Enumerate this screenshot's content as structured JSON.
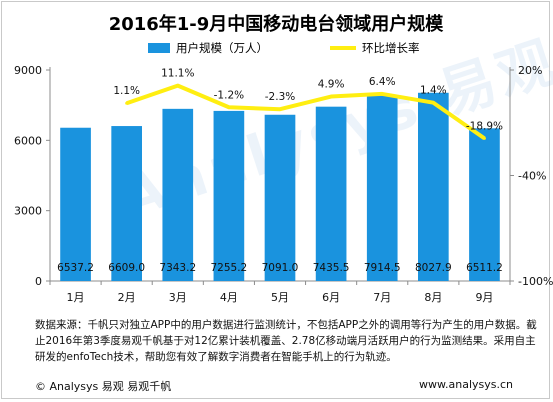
{
  "colors": {
    "bar": "#1a93de",
    "line": "#ffee11",
    "axis": "#8c8c8c",
    "grid": "#e0e0e0",
    "watermark": "#9fc6e8"
  },
  "watermark_text": "Analysys 易观",
  "note": "数据来源：千帆只对独立APP中的用户数据进行监测统计，不包括APP之外的调用等行为产生的用户数据。截止2016年第3季度易观千帆基于对12亿累计装机覆盖、2.78亿移动端月活跃用户的行为监测结果。采用自主研发的enfoTech技术，帮助您有效了解数字消费者在智能手机上的行为轨迹。",
  "footer": {
    "left": "© Analysys 易观   易观千帆",
    "right": "www.analysys.cn"
  },
  "chart_data": {
    "type": "bar",
    "title": "2016年1-9月中国移动电台领域用户规模",
    "categories": [
      "1月",
      "2月",
      "3月",
      "4月",
      "5月",
      "6月",
      "7月",
      "8月",
      "9月"
    ],
    "series": [
      {
        "name": "用户规模（万人）",
        "type": "bar",
        "axis": "left",
        "values": [
          6537.2,
          6609.0,
          7343.2,
          7255.2,
          7091.0,
          7435.5,
          7914.5,
          8027.9,
          6511.2
        ],
        "labels": [
          "6537.2",
          "6609.0",
          "7343.2",
          "7255.2",
          "7091.0",
          "7435.5",
          "7914.5",
          "8027.9",
          "6511.2"
        ]
      },
      {
        "name": "环比增长率",
        "type": "line",
        "axis": "right",
        "values": [
          null,
          1.1,
          11.1,
          -1.2,
          -2.3,
          4.9,
          6.4,
          1.4,
          -18.9
        ],
        "labels": [
          "",
          "1.1%",
          "11.1%",
          "-1.2%",
          "-2.3%",
          "4.9%",
          "6.4%",
          "1.4%",
          "-18.9%"
        ]
      }
    ],
    "y_left": {
      "min": 0,
      "max": 9000,
      "ticks": [
        0,
        3000,
        6000,
        9000
      ]
    },
    "y_right": {
      "min": -100,
      "max": 20,
      "ticks": [
        20,
        -40,
        -100
      ],
      "tick_labels": [
        "20%",
        "-40%",
        "-100%"
      ]
    },
    "legend_position": "top",
    "grid": false
  }
}
